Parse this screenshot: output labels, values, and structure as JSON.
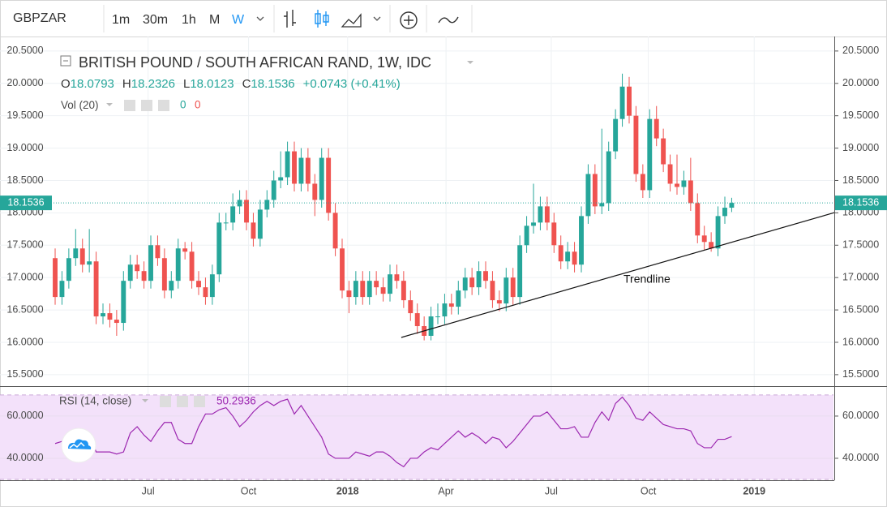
{
  "toolbar": {
    "symbol": "GBPZAR",
    "intervals": [
      "1m",
      "30m",
      "1h",
      "M",
      "W"
    ],
    "active_interval": 4
  },
  "chart_data": [
    {
      "type": "candlestick",
      "title": "BRITISH POUND / SOUTH AFRICAN RAND, 1W, IDC",
      "ohlc_labels": [
        "O",
        "H",
        "L",
        "C"
      ],
      "change": "+0.0743 (+0.41%)",
      "volume_label": "Vol (20)",
      "volume_legend_values": [
        0,
        0
      ],
      "up_color": "#26a69a",
      "down_color": "#ef5350",
      "open": [
        17.3,
        16.7,
        16.95,
        17.3,
        17.45,
        17.2,
        17.25,
        16.4,
        16.45,
        16.35,
        16.3,
        16.95,
        17.2,
        17.1,
        16.95,
        17.5,
        17.3,
        16.8,
        16.95,
        17.45,
        17.4,
        16.95,
        16.85,
        16.7,
        17.05,
        17.85,
        17.85,
        18.1,
        18.2,
        17.85,
        17.6,
        18.05,
        18.2,
        18.5,
        18.55,
        18.95,
        18.45,
        18.85,
        18.45,
        18.2,
        18.85,
        18.0,
        17.45,
        16.8,
        16.7,
        16.95,
        16.7,
        16.95,
        16.85,
        16.75,
        17.05,
        16.95,
        16.65,
        16.45,
        16.25,
        16.1,
        16.4,
        16.4,
        16.6,
        16.55,
        16.8,
        17.0,
        16.85,
        17.1,
        16.95,
        16.65,
        16.6,
        17.0,
        16.7,
        17.5,
        17.8,
        17.85,
        18.1,
        17.85,
        17.5,
        17.25,
        17.4,
        17.2,
        17.95,
        18.6,
        18.1,
        18.15,
        18.95,
        19.45,
        19.95,
        19.5,
        18.6,
        18.35,
        19.45,
        19.15,
        18.75,
        18.45,
        18.4,
        18.5,
        18.15,
        17.65,
        17.55,
        17.45,
        17.95,
        18.0793
      ],
      "high": [
        17.45,
        17.1,
        17.45,
        17.75,
        17.6,
        17.75,
        17.4,
        16.6,
        16.6,
        16.5,
        17.1,
        17.35,
        17.35,
        17.25,
        17.65,
        17.65,
        17.45,
        17.1,
        17.6,
        17.55,
        17.55,
        17.1,
        17.0,
        17.2,
        18.0,
        18.0,
        18.3,
        18.35,
        18.35,
        18.0,
        18.2,
        18.35,
        18.65,
        18.95,
        19.1,
        19.1,
        19.0,
        19.0,
        18.6,
        19.0,
        19.0,
        18.15,
        17.6,
        16.95,
        17.1,
        17.1,
        17.1,
        17.1,
        17.0,
        17.2,
        17.2,
        17.1,
        16.8,
        16.6,
        16.4,
        16.55,
        16.6,
        16.75,
        16.75,
        16.95,
        17.15,
        17.15,
        17.25,
        17.25,
        17.1,
        16.8,
        17.15,
        17.15,
        17.65,
        17.95,
        18.45,
        18.25,
        18.25,
        18.0,
        17.65,
        17.55,
        17.55,
        18.1,
        18.75,
        18.75,
        19.3,
        19.1,
        19.6,
        20.15,
        20.1,
        19.65,
        18.75,
        19.6,
        19.65,
        19.3,
        18.9,
        18.9,
        18.65,
        18.85,
        18.3,
        17.8,
        17.7,
        18.1,
        18.25,
        18.2326
      ],
      "low": [
        16.58,
        16.58,
        16.83,
        17.18,
        17.08,
        17.08,
        16.28,
        16.28,
        16.23,
        16.1,
        16.18,
        16.83,
        16.98,
        16.83,
        16.83,
        17.18,
        16.68,
        16.68,
        16.83,
        17.28,
        16.83,
        16.73,
        16.58,
        16.58,
        16.93,
        17.73,
        17.73,
        17.98,
        17.73,
        17.48,
        17.48,
        17.93,
        18.08,
        18.38,
        18.43,
        18.33,
        18.33,
        18.33,
        17.95,
        18.08,
        17.88,
        17.33,
        16.68,
        16.45,
        16.58,
        16.58,
        16.58,
        16.73,
        16.63,
        16.63,
        16.83,
        16.53,
        16.33,
        16.13,
        16.03,
        16.03,
        16.28,
        16.28,
        16.43,
        16.43,
        16.68,
        16.73,
        16.73,
        16.83,
        16.53,
        16.48,
        16.48,
        16.58,
        16.58,
        17.38,
        17.68,
        17.73,
        17.73,
        17.38,
        17.13,
        17.13,
        17.08,
        17.08,
        17.83,
        17.98,
        17.98,
        18.03,
        18.83,
        19.33,
        19.38,
        18.48,
        18.23,
        18.23,
        19.03,
        18.63,
        18.33,
        18.28,
        18.28,
        18.03,
        17.53,
        17.43,
        17.4,
        17.33,
        17.83,
        18.0123
      ],
      "close": [
        16.7,
        16.95,
        17.3,
        17.45,
        17.2,
        17.25,
        16.4,
        16.45,
        16.35,
        16.3,
        16.95,
        17.2,
        17.1,
        16.95,
        17.5,
        17.3,
        16.8,
        16.95,
        17.45,
        17.4,
        16.95,
        16.85,
        16.7,
        17.05,
        17.85,
        17.85,
        18.1,
        18.2,
        17.85,
        17.6,
        18.05,
        18.2,
        18.5,
        18.55,
        18.95,
        18.45,
        18.85,
        18.45,
        18.2,
        18.85,
        18.0,
        17.45,
        16.8,
        16.7,
        16.95,
        16.7,
        16.95,
        16.85,
        16.75,
        17.05,
        16.95,
        16.65,
        16.45,
        16.25,
        16.1,
        16.4,
        16.4,
        16.6,
        16.55,
        16.8,
        17.0,
        16.85,
        17.1,
        16.95,
        16.65,
        16.6,
        17.0,
        16.7,
        17.5,
        17.8,
        17.85,
        18.1,
        17.85,
        17.5,
        17.25,
        17.4,
        17.2,
        17.95,
        18.6,
        18.1,
        18.15,
        18.95,
        19.45,
        19.95,
        19.5,
        18.6,
        18.35,
        19.45,
        19.15,
        18.75,
        18.45,
        18.4,
        18.5,
        18.15,
        17.65,
        17.55,
        17.45,
        17.95,
        18.0793,
        18.1536
      ],
      "xlim": [
        -8.07,
        113.9
      ],
      "xticks": [
        {
          "value": 13.6,
          "label": "Jul"
        },
        {
          "value": 28.3,
          "label": "Oct"
        },
        {
          "value": 42.8,
          "label": "2018"
        },
        {
          "value": 57.2,
          "label": "Apr"
        },
        {
          "value": 72.6,
          "label": "Jul"
        },
        {
          "value": 86.8,
          "label": "Oct"
        },
        {
          "value": 102.3,
          "label": "2019"
        }
      ],
      "ylim": [
        15.323,
        20.724
      ],
      "yticks": [
        {
          "value": 15.5,
          "label": "15.5000"
        },
        {
          "value": 16,
          "label": "16.0000"
        },
        {
          "value": 16.5,
          "label": "16.5000"
        },
        {
          "value": 17,
          "label": "17.0000"
        },
        {
          "value": 17.5,
          "label": "17.5000"
        },
        {
          "value": 18,
          "label": "18.0000"
        },
        {
          "value": 18.5,
          "label": "18.5000"
        },
        {
          "value": 19,
          "label": "19.0000"
        },
        {
          "value": 19.5,
          "label": "19.5000"
        },
        {
          "value": 20,
          "label": "20.0000"
        },
        {
          "value": 20.5,
          "label": "20.5000"
        }
      ],
      "grid": true,
      "trendline": {
        "label": "Trendline",
        "x": [
          50.65,
          114.1
        ],
        "y": [
          16.075,
          18.005
        ]
      }
    },
    {
      "type": "line",
      "title": "RSI (14, close)",
      "color": "#9c27b0",
      "band": [
        30,
        70
      ],
      "band_color": "#f3e1fa",
      "values": [
        47,
        48,
        52,
        54,
        53,
        52,
        43,
        43,
        43,
        42,
        43,
        52,
        55,
        51,
        48,
        53,
        57,
        57,
        49,
        47,
        47,
        55,
        61,
        61,
        63,
        64,
        60,
        55,
        58,
        62,
        65,
        67,
        65,
        67,
        68,
        61,
        65,
        60,
        55,
        50,
        42,
        40,
        40,
        40,
        43,
        42,
        41,
        43,
        43,
        41,
        38,
        36,
        40,
        40,
        43,
        45,
        44,
        47,
        50,
        53,
        50,
        52,
        50,
        47,
        50,
        49,
        45,
        48,
        52,
        56,
        60,
        60,
        62,
        58,
        54,
        54,
        55,
        50,
        50,
        57,
        62,
        58,
        66,
        69,
        65,
        59,
        58,
        62,
        59,
        56,
        55,
        54,
        54,
        53,
        47,
        45,
        45,
        49,
        49,
        50.2936
      ],
      "ylim": [
        29.6,
        74.2
      ],
      "yticks": [
        {
          "value": 40,
          "label": "40.0000"
        },
        {
          "value": 60,
          "label": "60.0000"
        }
      ]
    }
  ]
}
